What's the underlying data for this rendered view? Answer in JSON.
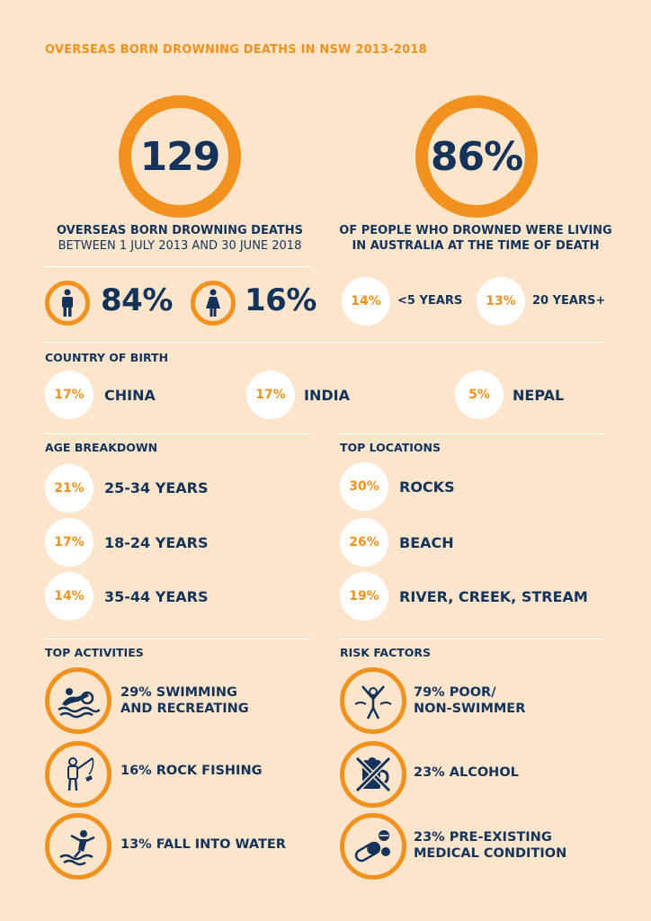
{
  "title": "OVERSEAS BORN DROWNING DEATHS IN NSW 2013-2018",
  "stat_left": {
    "value": "129",
    "caption_line1": "OVERSEAS BORN DROWNING DEATHS",
    "caption_line2": "BETWEEN 1 JULY 2013 AND 30 JUNE 2018"
  },
  "stat_right": {
    "value": "86%",
    "caption_line1": "OF PEOPLE WHO DROWNED WERE LIVING",
    "caption_line2": "IN AUSTRALIA AT THE TIME OF DEATH"
  },
  "gender": {
    "male_pct": "84%",
    "female_pct": "16%",
    "male_icon": "male-person-icon",
    "female_icon": "female-person-icon"
  },
  "residency": [
    {
      "pct": "14%",
      "label": "<5 YEARS"
    },
    {
      "pct": "13%",
      "label": "20 YEARS+"
    }
  ],
  "country": {
    "heading": "COUNTRY OF BIRTH",
    "items": [
      {
        "pct": "17%",
        "label": "CHINA"
      },
      {
        "pct": "17%",
        "label": "INDIA"
      },
      {
        "pct": "5%",
        "label": "NEPAL"
      }
    ]
  },
  "age": {
    "heading": "AGE BREAKDOWN",
    "items": [
      {
        "pct": "21%",
        "label": "25-34 YEARS"
      },
      {
        "pct": "17%",
        "label": "18-24 YEARS"
      },
      {
        "pct": "14%",
        "label": "35-44 YEARS"
      }
    ]
  },
  "locations": {
    "heading": "TOP LOCATIONS",
    "items": [
      {
        "pct": "30%",
        "label": "ROCKS"
      },
      {
        "pct": "26%",
        "label": "BEACH"
      },
      {
        "pct": "19%",
        "label": "RIVER, CREEK, STREAM"
      }
    ]
  },
  "activities": {
    "heading": "TOP ACTIVITIES",
    "items": [
      {
        "line1": "29% SWIMMING",
        "line2": "AND RECREATING",
        "icon": "swimmer-icon"
      },
      {
        "line1": "16% ROCK FISHING",
        "line2": "",
        "icon": "fisherman-icon"
      },
      {
        "line1": "13% FALL INTO WATER",
        "line2": "",
        "icon": "falling-person-icon"
      }
    ]
  },
  "risks": {
    "heading": "RISK FACTORS",
    "items": [
      {
        "line1": "79% POOR/",
        "line2": "NON-SWIMMER",
        "icon": "struggling-swimmer-icon"
      },
      {
        "line1": "23% ALCOHOL",
        "line2": "",
        "icon": "no-alcohol-icon"
      },
      {
        "line1": "23% PRE-EXISTING",
        "line2": "MEDICAL CONDITION",
        "icon": "pills-icon"
      }
    ]
  },
  "colors": {
    "background": "#fde5cc",
    "accent": "#f2921e",
    "text": "#14335a",
    "badge": "#ffffff"
  }
}
